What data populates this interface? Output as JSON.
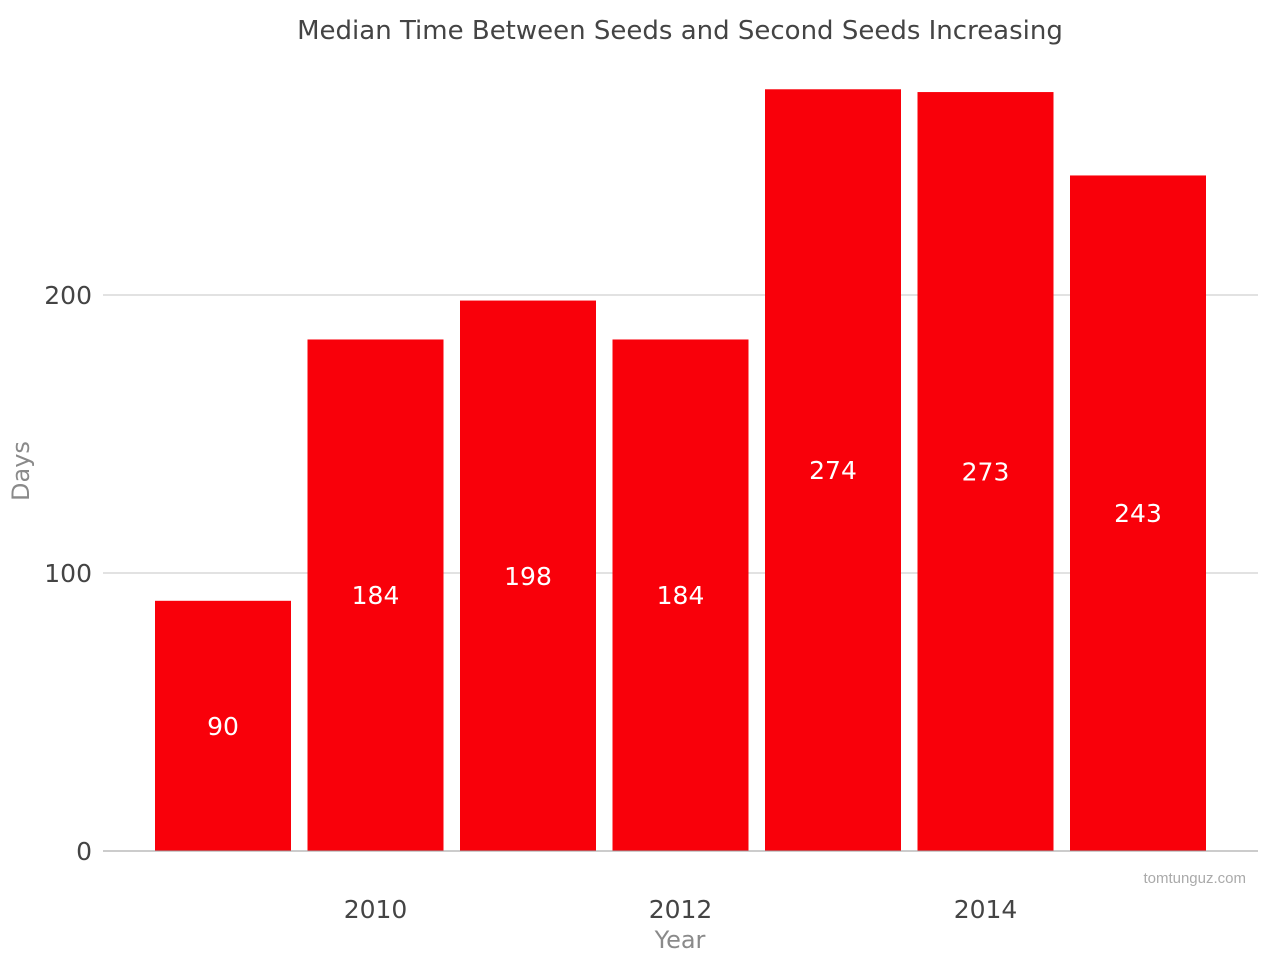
{
  "chart_data": {
    "type": "bar",
    "title": "Median Time Between Seeds and Second Seeds Increasing",
    "xlabel": "Year",
    "ylabel": "Days",
    "x": [
      2009,
      2010,
      2011,
      2012,
      2013,
      2014,
      2015
    ],
    "values": [
      90,
      184,
      198,
      184,
      274,
      273,
      243
    ],
    "x_tick_labels": [
      "2010",
      "2012",
      "2014"
    ],
    "x_tick_values": [
      2010,
      2012,
      2014
    ],
    "y_tick_labels": [
      "0",
      "100",
      "200"
    ],
    "y_tick_values": [
      0,
      100,
      200
    ],
    "ylim": [
      0,
      300
    ],
    "grid": true,
    "bar_color": "#f9000a",
    "bar_label_color": "#ffffff"
  },
  "watermark": "tomtunguz.com"
}
